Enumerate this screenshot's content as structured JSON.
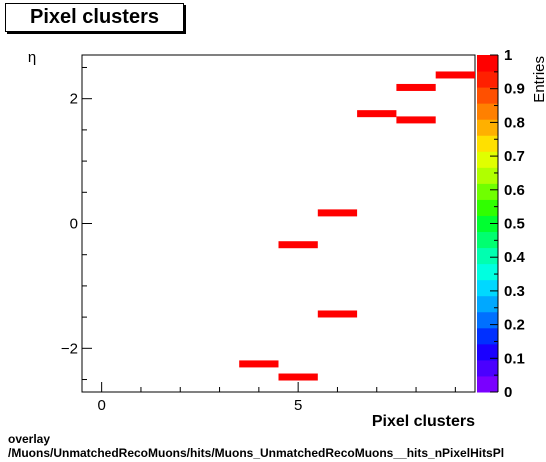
{
  "title": "Pixel clusters",
  "footer": {
    "line1": "overlay",
    "line2": "/Muons/UnmatchedRecoMuons/hits/Muons_UnmatchedRecoMuons__hits_nPixelHitsPl"
  },
  "chart_data": {
    "type": "heatmap",
    "title": "Pixel clusters",
    "xlabel": "Pixel clusters",
    "ylabel": "η",
    "zlabel": "Entries",
    "xlim": [
      -0.5,
      9.5
    ],
    "ylim": [
      -2.7,
      2.7
    ],
    "zlim": [
      0,
      1
    ],
    "x_ticks": [
      0,
      5
    ],
    "y_ticks": [
      -2,
      0,
      2
    ],
    "z_ticks": [
      "0",
      "0.1",
      "0.2",
      "0.3",
      "0.4",
      "0.5",
      "0.6",
      "0.7",
      "0.8",
      "0.9",
      "1"
    ],
    "bins": [
      {
        "x": 4,
        "y": -2.25,
        "value": 1
      },
      {
        "x": 5,
        "y": -2.46,
        "value": 1
      },
      {
        "x": 5,
        "y": -0.34,
        "value": 1
      },
      {
        "x": 6,
        "y": -1.45,
        "value": 1
      },
      {
        "x": 6,
        "y": 0.17,
        "value": 1
      },
      {
        "x": 7,
        "y": 1.76,
        "value": 1
      },
      {
        "x": 8,
        "y": 1.66,
        "value": 1
      },
      {
        "x": 8,
        "y": 2.18,
        "value": 1
      },
      {
        "x": 9,
        "y": 2.38,
        "value": 1
      }
    ],
    "palette": [
      "#7a00ff",
      "#4a00ff",
      "#1a00ff",
      "#0030ff",
      "#0070ff",
      "#00a8ff",
      "#00d8ff",
      "#00ffe0",
      "#00ffb0",
      "#00ff70",
      "#00ff30",
      "#30ff00",
      "#70ff00",
      "#b0ff00",
      "#e0ff00",
      "#ffe000",
      "#ffb000",
      "#ff8000",
      "#ff5000",
      "#ff2000",
      "#ff0000"
    ]
  }
}
